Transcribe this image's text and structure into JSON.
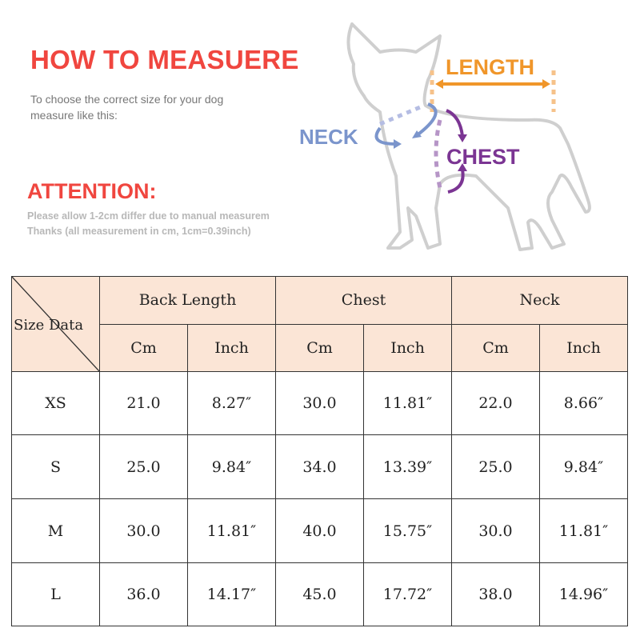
{
  "header": {
    "title": "HOW TO MEASUERE",
    "subtitle_line1": "To choose the correct size for your dog",
    "subtitle_line2": "measure like this:",
    "attention_title": "ATTENTION:",
    "note_line1": "Please allow 1-2cm differ due to manual measurem",
    "note_line2": "Thanks (all measurement in cm, 1cm=0.39inch)"
  },
  "diagram": {
    "length_label": "LENGTH",
    "neck_label": "NECK",
    "chest_label": "CHEST",
    "colors": {
      "length": "#f0962a",
      "neck": "#7b95cc",
      "chest": "#7b3593",
      "title": "#f0463f",
      "outline": "#cfcfcf"
    }
  },
  "table": {
    "corner_label": "Size Data",
    "groups": [
      "Back Length",
      "Chest",
      "Neck"
    ],
    "units": [
      "Cm",
      "Inch",
      "Cm",
      "Inch",
      "Cm",
      "Inch"
    ],
    "header_bg": "#fbe5d6",
    "rows": [
      {
        "size": "XS",
        "values": [
          "21.0",
          "8.27″",
          "30.0",
          "11.81″",
          "22.0",
          "8.66″"
        ]
      },
      {
        "size": "S",
        "values": [
          "25.0",
          "9.84″",
          "34.0",
          "13.39″",
          "25.0",
          "9.84″"
        ]
      },
      {
        "size": "M",
        "values": [
          "30.0",
          "11.81″",
          "40.0",
          "15.75″",
          "30.0",
          "11.81″"
        ]
      },
      {
        "size": "L",
        "values": [
          "36.0",
          "14.17″",
          "45.0",
          "17.72″",
          "38.0",
          "14.96″"
        ]
      }
    ]
  }
}
